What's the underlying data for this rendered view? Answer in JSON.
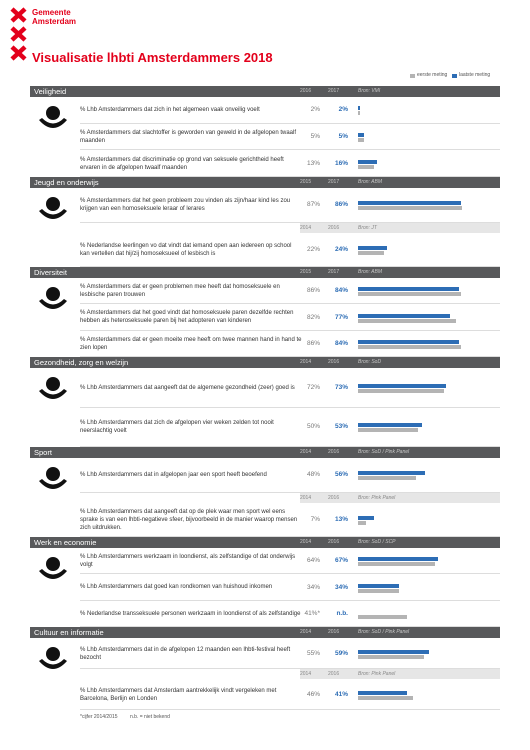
{
  "header": {
    "org_line1": "Gemeente",
    "org_line2": "Amsterdam",
    "title": "Visualisatie lhbti Amsterdammers 2018"
  },
  "legend": [
    {
      "name": "eerste meting",
      "color": "#b4b4b4"
    },
    {
      "name": "laatste meting",
      "color": "#2d6db5"
    }
  ],
  "sections": [
    {
      "title": "Veiligheid",
      "years": [
        "2016",
        "2017"
      ],
      "source": "Bron: VMI",
      "rows": [
        {
          "text": "% Lhb Amsterdammers dat zich in het algemeen vaak onveilig voelt",
          "values": [
            2,
            2
          ],
          "value_labels": [
            "2%",
            "2%"
          ]
        },
        {
          "text": "% Amsterdammers dat slachtoffer is geworden van geweld in de afgelopen twaalf maanden",
          "values": [
            5,
            5
          ],
          "value_labels": [
            "5%",
            "5%"
          ]
        },
        {
          "text": "% Amsterdammers dat discriminatie op grond van seksuele gerichtheid heeft ervaren in de afgelopen twaalf maanden",
          "values": [
            13,
            16
          ],
          "value_labels": [
            "13%",
            "16%"
          ]
        }
      ]
    },
    {
      "title": "Jeugd en onderwijs",
      "years": [
        "2015",
        "2017"
      ],
      "source": "Bron: ABM",
      "rows": [
        {
          "text": "% Amsterdammers dat het geen probleem zou vinden als zijn/haar kind les zou krijgen van een homoseksuele leraar of lerares",
          "values": [
            87,
            86
          ],
          "value_labels": [
            "87%",
            "86%"
          ]
        },
        {
          "subheader": {
            "years": [
              "2014",
              "2016"
            ],
            "source": "Bron: JT"
          },
          "text": "% Nederlandse leerlingen vo dat vindt dat iemand open aan iedereen op school kan vertellen dat hij/zij homoseksueel of lesbisch is",
          "values": [
            22,
            24
          ],
          "value_labels": [
            "22%",
            "24%"
          ]
        }
      ]
    },
    {
      "title": "Diversiteit",
      "years": [
        "2015",
        "2017"
      ],
      "source": "Bron: ABM",
      "rows": [
        {
          "text": "% Amsterdammers dat er geen problemen mee heeft dat homoseksuele en lesbische paren trouwen",
          "values": [
            86,
            84
          ],
          "value_labels": [
            "86%",
            "84%"
          ]
        },
        {
          "text": "% Amsterdammers dat het goed vindt dat homoseksuele paren dezelfde rechten hebben als heteroseksuele paren bij het adopteren van kinderen",
          "values": [
            82,
            77
          ],
          "value_labels": [
            "82%",
            "77%"
          ]
        },
        {
          "text": "% Amsterdammers dat er geen moeite mee heeft om twee mannen hand in hand te zien lopen",
          "values": [
            86,
            84
          ],
          "value_labels": [
            "86%",
            "84%"
          ]
        }
      ]
    },
    {
      "title": "Gezondheid, zorg en welzijn",
      "years": [
        "2014",
        "2016"
      ],
      "source": "Bron: SoD",
      "rows": [
        {
          "text": "% Lhb Amsterdammers dat aangeeft dat de algemene gezondheid (zeer) goed is",
          "values": [
            72,
            73
          ],
          "value_labels": [
            "72%",
            "73%"
          ]
        },
        {
          "text": "% Lhb Amsterdammers dat zich de afgelopen vier weken zelden tot nooit neerslachtig voelt",
          "values": [
            50,
            53
          ],
          "value_labels": [
            "50%",
            "53%"
          ]
        }
      ]
    },
    {
      "title": "Sport",
      "years": [
        "2014",
        "2016"
      ],
      "source": "Bron: SoD / Pink Panel",
      "rows": [
        {
          "text": "% Lhb Amsterdammers dat in afgelopen jaar een sport heeft beoefend",
          "values": [
            48,
            56
          ],
          "value_labels": [
            "48%",
            "56%"
          ]
        },
        {
          "subheader": {
            "years": [
              "2014",
              "2016"
            ],
            "source": "Bron: Pink Panel"
          },
          "text": "% Lhb Amsterdammers dat aangeeft dat op de plek waar men sport wel eens sprake is van een lhbti-negatieve sfeer, bijvoorbeeld in de manier waarop mensen zich uitdrukken.",
          "values": [
            7,
            13
          ],
          "value_labels": [
            "7%",
            "13%"
          ]
        }
      ]
    },
    {
      "title": "Werk en economie",
      "years": [
        "2014",
        "2016"
      ],
      "source": "Bron: SoD / SCP",
      "rows": [
        {
          "text": "% Lhb Amsterdammers werkzaam in loondienst, als zelfstandige of dat onderwijs volgt",
          "values": [
            64,
            67
          ],
          "value_labels": [
            "64%",
            "67%"
          ]
        },
        {
          "text": "% Lhb Amsterdammers dat goed kan rondkomen van huishoud inkomen",
          "values": [
            34,
            34
          ],
          "value_labels": [
            "34%",
            "34%"
          ]
        },
        {
          "text": "% Nederlandse transseksuele personen werkzaam in loondienst of als zelfstandige",
          "values": [
            41,
            null
          ],
          "value_labels": [
            "41%*",
            "n.b."
          ]
        }
      ]
    },
    {
      "title": "Cultuur en informatie",
      "years": [
        "2014",
        "2016"
      ],
      "source": "Bron: SoD / Pink Panel",
      "rows": [
        {
          "text": "% Lhb Amsterdammers dat in de afgelopen 12 maanden een lhbti-festival heeft bezocht",
          "values": [
            55,
            59
          ],
          "value_labels": [
            "55%",
            "59%"
          ]
        },
        {
          "subheader": {
            "years": [
              "2014",
              "2016"
            ],
            "source": "Bron: Pink Panel"
          },
          "text": "% Lhb Amsterdammers dat Amsterdam aantrekkelijk vindt vergeleken met Barcelona, Berlijn en Londen",
          "values": [
            46,
            41
          ],
          "value_labels": [
            "46%",
            "41%"
          ]
        }
      ]
    }
  ],
  "footnote": [
    "*cijfer 2014/2015",
    "n.b. = niet bekend"
  ]
}
